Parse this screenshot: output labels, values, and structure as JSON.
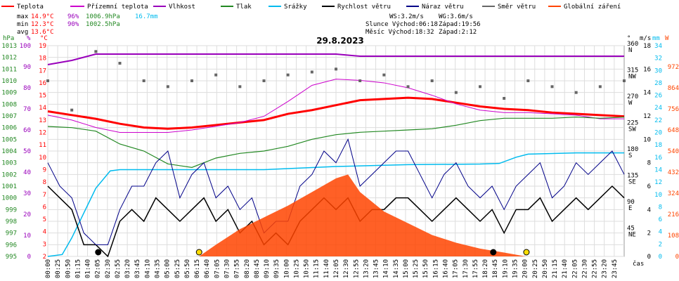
{
  "colors": {
    "teplota": "#ff0000",
    "prizemni": "#cc00cc",
    "vlhkost": "#9900bb",
    "tlak": "#228822",
    "srazky": "#00bbee",
    "rychlost": "#000000",
    "naraz": "#000088",
    "smer": "#666666",
    "zareni": "#ff4400",
    "grid": "#dddddd",
    "axis_hpa": "#228822",
    "axis_pct": "#9900bb",
    "axis_c": "#ff0000",
    "axis_mm": "#00bbee",
    "axis_w": "#ff4400"
  },
  "legend": [
    {
      "label": "Teplota",
      "color": "#ff0000"
    },
    {
      "label": "Přízemní teplota",
      "color": "#cc00cc"
    },
    {
      "label": "Vlhkost",
      "color": "#9900bb"
    },
    {
      "label": "Tlak",
      "color": "#228822"
    },
    {
      "label": "Srážky",
      "color": "#00bbee"
    },
    {
      "label": "Rychlost větru",
      "color": "#000000"
    },
    {
      "label": "Náraz větru",
      "color": "#000088"
    },
    {
      "label": "Směr větru",
      "color": "#666666"
    },
    {
      "label": "Globální záření",
      "color": "#ff4400"
    }
  ],
  "stats": {
    "max_label": "max",
    "max_t": "14.9°C",
    "max_h": "96%",
    "max_p": "1006.9hPa",
    "max_r": "16.7mm",
    "min_label": "min",
    "min_t": "12.3°C",
    "min_h": "90%",
    "min_p": "1002.5hPa",
    "avg_label": "avg",
    "avg_t": "13.6°C"
  },
  "info": {
    "ws": "WS:3.2m/s",
    "wg": "WG:3.6m/s",
    "slunce": "Slunce Východ:06:18",
    "slunce_z": "Západ:19:56",
    "mesic": "Měsíc  Východ:18:32",
    "mesic_z": "Západ:2:12"
  },
  "chart_data": {
    "type": "line",
    "title": "29.8.2023",
    "x_unit_label": "čas",
    "x_ticks": [
      "00:00",
      "00:25",
      "00:50",
      "01:15",
      "01:40",
      "02:05",
      "02:30",
      "02:55",
      "03:20",
      "03:45",
      "04:10",
      "04:35",
      "05:00",
      "05:25",
      "05:50",
      "06:15",
      "06:40",
      "07:05",
      "07:30",
      "07:55",
      "08:20",
      "08:45",
      "09:10",
      "09:35",
      "10:00",
      "10:25",
      "10:50",
      "11:15",
      "11:40",
      "12:05",
      "12:30",
      "12:55",
      "13:20",
      "13:45",
      "14:10",
      "14:35",
      "15:00",
      "15:25",
      "15:50",
      "16:15",
      "16:40",
      "17:05",
      "17:30",
      "17:55",
      "18:20",
      "18:45",
      "19:10",
      "19:35",
      "20:00",
      "20:25",
      "20:50",
      "21:15",
      "21:40",
      "22:05",
      "22:30",
      "22:55",
      "23:20",
      "23:45"
    ],
    "axes": {
      "hpa": {
        "unit": "hPa",
        "range": [
          995,
          1013
        ],
        "ticks": [
          "995",
          "996",
          "997",
          "998",
          "999",
          "1000",
          "1001",
          "1002",
          "1003",
          "1004",
          "1005",
          "1006",
          "1007",
          "1008",
          "1009",
          "1010",
          "1011",
          "1012",
          "1013"
        ]
      },
      "pct": {
        "unit": "%",
        "range": [
          0,
          100
        ],
        "ticks": [
          "0",
          "10",
          "20",
          "30",
          "40",
          "50",
          "60",
          "70",
          "80",
          "90",
          "100"
        ]
      },
      "c": {
        "unit": "°C",
        "range": [
          2,
          19
        ],
        "ticks": [
          "2",
          "3",
          "4",
          "5",
          "6",
          "7",
          "8",
          "9",
          "10",
          "11",
          "12",
          "13",
          "14",
          "15",
          "16",
          "17",
          "18",
          "19"
        ]
      },
      "dir": {
        "unit": "°",
        "ticks": [
          "45",
          "90",
          "135",
          "180",
          "225",
          "270",
          "315",
          "360"
        ],
        "names": [
          "NE",
          "E",
          "SE",
          "S",
          "SW",
          "W",
          "NW",
          "N"
        ]
      },
      "ms": {
        "unit": "m/s",
        "range": [
          0,
          18
        ],
        "ticks": [
          "0",
          "2",
          "4",
          "6",
          "8",
          "10",
          "12",
          "14",
          "16",
          "18"
        ]
      },
      "mm": {
        "unit": "mm",
        "range": [
          0,
          34
        ],
        "ticks": [
          "0",
          "2",
          "4",
          "6",
          "8",
          "10",
          "12",
          "14",
          "16",
          "18",
          "20",
          "22",
          "24",
          "26",
          "28",
          "30",
          "32",
          "34"
        ]
      },
      "w": {
        "unit": "W",
        "range": [
          0,
          972
        ],
        "ticks": [
          "0",
          "108",
          "216",
          "324",
          "432",
          "540",
          "648",
          "756",
          "864",
          "972"
        ]
      }
    },
    "series": [
      {
        "name": "Teplota",
        "unit": "°C",
        "x": [
          0,
          1,
          2,
          3,
          4,
          5,
          6,
          7,
          8,
          9,
          10,
          11,
          12,
          13,
          14,
          15,
          16,
          17,
          18,
          19,
          20,
          21,
          22,
          23,
          24
        ],
        "values": [
          13.7,
          13.4,
          13.1,
          12.7,
          12.4,
          12.3,
          12.4,
          12.6,
          12.8,
          13.0,
          13.5,
          13.8,
          14.2,
          14.6,
          14.7,
          14.8,
          14.7,
          14.4,
          14.1,
          13.9,
          13.8,
          13.6,
          13.5,
          13.4,
          13.3
        ]
      },
      {
        "name": "Přízemní teplota",
        "unit": "°C",
        "x": [
          0,
          1,
          2,
          3,
          4,
          5,
          6,
          7,
          8,
          9,
          10,
          11,
          12,
          13,
          14,
          15,
          16,
          17,
          18,
          19,
          20,
          21,
          22,
          23,
          24
        ],
        "values": [
          13.4,
          13.0,
          12.4,
          12.0,
          12.0,
          12.0,
          12.2,
          12.5,
          12.8,
          13.3,
          14.5,
          15.8,
          16.3,
          16.2,
          16.0,
          15.6,
          15.0,
          14.3,
          13.8,
          13.6,
          13.6,
          13.5,
          13.4,
          13.1,
          13.1
        ]
      },
      {
        "name": "Vlhkost",
        "unit": "%",
        "x": [
          0,
          1,
          2,
          3,
          4,
          5,
          6,
          7,
          8,
          9,
          10,
          11,
          12,
          13,
          14,
          15,
          16,
          17,
          18,
          19,
          20,
          21,
          22,
          23,
          24
        ],
        "values": [
          91,
          93,
          96,
          96,
          96,
          96,
          96,
          96,
          96,
          96,
          96,
          96,
          96,
          95,
          95,
          95,
          95,
          95,
          95,
          95,
          95,
          95,
          95,
          95,
          95
        ]
      },
      {
        "name": "Tlak",
        "unit": "hPa",
        "x": [
          0,
          1,
          2,
          3,
          4,
          5,
          6,
          7,
          8,
          9,
          10,
          11,
          12,
          13,
          14,
          15,
          16,
          17,
          18,
          19,
          20,
          21,
          22,
          23,
          24
        ],
        "values": [
          1006.1,
          1006.0,
          1005.7,
          1004.6,
          1004.0,
          1002.9,
          1002.6,
          1003.4,
          1003.8,
          1004.0,
          1004.4,
          1005.0,
          1005.4,
          1005.6,
          1005.7,
          1005.8,
          1005.9,
          1006.2,
          1006.6,
          1006.8,
          1006.8,
          1006.8,
          1006.9,
          1006.8,
          1006.9
        ]
      },
      {
        "name": "Srážky",
        "unit": "mm",
        "x": [
          0,
          0.6,
          1,
          1.5,
          2,
          2.6,
          3,
          6,
          9,
          12,
          15,
          18,
          18.8,
          19.5,
          20,
          22,
          24
        ],
        "values": [
          0,
          0.3,
          3,
          7,
          11,
          13.8,
          14,
          14,
          14,
          14.5,
          14.8,
          14.9,
          15.0,
          16.0,
          16.5,
          16.7,
          16.7
        ]
      },
      {
        "name": "Rychlost větru",
        "unit": "m/s",
        "x": [
          0,
          0.5,
          1,
          1.5,
          2,
          2.5,
          3,
          3.5,
          4,
          4.5,
          5,
          5.5,
          6,
          6.5,
          7,
          7.5,
          8,
          8.5,
          9,
          9.5,
          10,
          10.5,
          11,
          11.5,
          12,
          12.5,
          13,
          13.5,
          14,
          14.5,
          15,
          15.5,
          16,
          16.5,
          17,
          17.5,
          18,
          18.5,
          19,
          19.5,
          20,
          20.5,
          21,
          21.5,
          22,
          22.5,
          23,
          23.5,
          24
        ],
        "values": [
          6,
          5,
          4,
          1,
          1,
          0,
          3,
          4,
          3,
          5,
          4,
          3,
          4,
          5,
          3,
          4,
          2,
          3,
          1,
          2,
          1,
          3,
          4,
          5,
          4,
          5,
          3,
          4,
          4,
          5,
          5,
          4,
          3,
          4,
          5,
          4,
          3,
          4,
          2,
          4,
          4,
          5,
          3,
          4,
          5,
          4,
          5,
          6,
          5
        ]
      },
      {
        "name": "Náraz větru",
        "unit": "m/s",
        "x": [
          0,
          0.5,
          1,
          1.5,
          2,
          2.5,
          3,
          3.5,
          4,
          4.5,
          5,
          5.5,
          6,
          6.5,
          7,
          7.5,
          8,
          8.5,
          9,
          9.5,
          10,
          10.5,
          11,
          11.5,
          12,
          12.5,
          13,
          13.5,
          14,
          14.5,
          15,
          15.5,
          16,
          16.5,
          17,
          17.5,
          18,
          18.5,
          19,
          19.5,
          20,
          20.5,
          21,
          21.5,
          22,
          22.5,
          23,
          23.5,
          24
        ],
        "values": [
          8,
          6,
          5,
          2,
          1,
          1,
          4,
          6,
          6,
          8,
          9,
          5,
          7,
          8,
          5,
          6,
          4,
          5,
          2,
          3,
          3,
          6,
          7,
          9,
          8,
          10,
          6,
          7,
          8,
          9,
          9,
          7,
          5,
          7,
          8,
          6,
          5,
          6,
          4,
          6,
          7,
          8,
          5,
          6,
          8,
          7,
          8,
          9,
          7
        ]
      },
      {
        "name": "Směr větru",
        "unit": "°",
        "x": [
          0,
          1,
          2,
          3,
          4,
          5,
          6,
          7,
          8,
          9,
          10,
          11,
          12,
          13,
          14,
          15,
          16,
          17,
          18,
          19,
          20,
          21,
          22,
          23,
          24
        ],
        "values": [
          300,
          250,
          350,
          330,
          300,
          290,
          300,
          310,
          290,
          300,
          310,
          315,
          320,
          300,
          310,
          290,
          300,
          280,
          290,
          270,
          300,
          290,
          280,
          290,
          300
        ]
      },
      {
        "name": "Globální záření",
        "unit": "W",
        "x": [
          6.3,
          7,
          8,
          9,
          10,
          11,
          12,
          12.5,
          13,
          14,
          15,
          16,
          17,
          18,
          19,
          19.9
        ],
        "values": [
          0,
          60,
          140,
          200,
          260,
          330,
          400,
          420,
          330,
          230,
          170,
          110,
          70,
          40,
          20,
          0
        ]
      }
    ],
    "annotations": [
      "02:05",
      "06:18",
      "18:32",
      "19:56"
    ]
  }
}
